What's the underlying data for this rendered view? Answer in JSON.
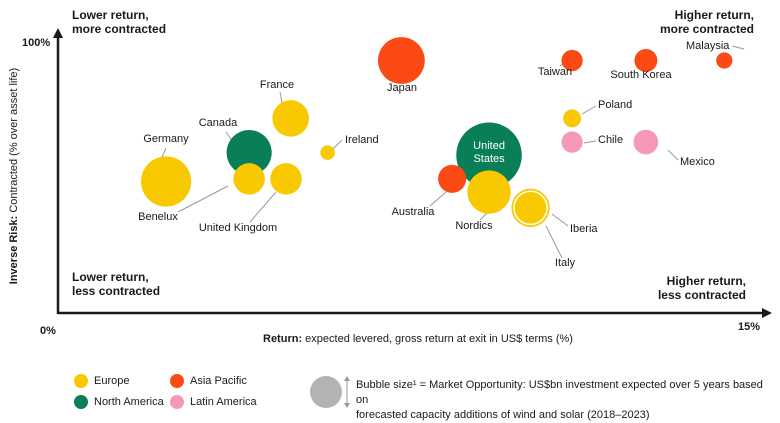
{
  "colors": {
    "europe": "#f8c800",
    "north_america": "#0a7f57",
    "asia_pacific": "#fb4a14",
    "latin_america": "#f49ab7",
    "axis": "#1a1a1a",
    "leader": "#9a9a9a",
    "size_bubble": "#b3b3b3"
  },
  "quadrants": {
    "top_left": [
      "Lower return,",
      "more contracted"
    ],
    "top_right": [
      "Higher return,",
      "more contracted"
    ],
    "bottom_left": [
      "Lower return,",
      "less contracted"
    ],
    "bottom_right": [
      "Higher return,",
      "less contracted"
    ]
  },
  "legend": [
    {
      "label": "Europe",
      "color_key": "europe"
    },
    {
      "label": "Asia Pacific",
      "color_key": "asia_pacific"
    },
    {
      "label": "North America",
      "color_key": "north_america"
    },
    {
      "label": "Latin America",
      "color_key": "latin_america"
    }
  ],
  "size_note": {
    "line1": "Bubble size¹ = Market Opportunity: US$bn investment expected over 5 years based on",
    "line2": "forecasted capacity additions of wind and solar (2018–2023)"
  },
  "chart_data": {
    "type": "scatter",
    "xlabel_bold": "Return:",
    "xlabel_rest": " expected levered, gross return at exit in US$ terms (%)",
    "ylabel_bold": "Inverse Risk:",
    "ylabel_rest": " Contracted (% over asset life)",
    "x_tick_min_label": "0%",
    "x_tick_max_label": "15%",
    "y_tick_max_label": "100%",
    "x_range": [
      0,
      15
    ],
    "y_range": [
      0,
      100
    ],
    "grid": false,
    "points": [
      {
        "label": "Germany",
        "region": "europe",
        "x": 2.3,
        "y": 50,
        "size": 26
      },
      {
        "label": "Benelux",
        "region": "europe",
        "x": 4.1,
        "y": 51,
        "size": 15
      },
      {
        "label": "Canada",
        "region": "north_america",
        "x": 4.1,
        "y": 61,
        "size": 23
      },
      {
        "label": "France",
        "region": "europe",
        "x": 5.0,
        "y": 74,
        "size": 18
      },
      {
        "label": "United Kingdom",
        "region": "europe",
        "x": 4.9,
        "y": 51,
        "size": 15
      },
      {
        "label": "Ireland",
        "region": "europe",
        "x": 5.8,
        "y": 61,
        "size": 5
      },
      {
        "label": "Japan",
        "region": "asia_pacific",
        "x": 7.4,
        "y": 96,
        "size": 24
      },
      {
        "label": "United States",
        "region": "north_america",
        "x": 9.3,
        "y": 60,
        "size": 35
      },
      {
        "label": "Australia",
        "region": "asia_pacific",
        "x": 8.5,
        "y": 51,
        "size": 13
      },
      {
        "label": "Nordics",
        "region": "europe",
        "x": 9.3,
        "y": 46,
        "size": 22
      },
      {
        "label": "Iberia",
        "region": "europe",
        "x": 10.2,
        "y": 40,
        "size": 19
      },
      {
        "label": "Italy",
        "region": "europe",
        "x": 10.2,
        "y": 40,
        "size": 16
      },
      {
        "label": "Poland",
        "region": "europe",
        "x": 11.1,
        "y": 74,
        "size": 7
      },
      {
        "label": "Chile",
        "region": "latin_america",
        "x": 11.1,
        "y": 65,
        "size": 9
      },
      {
        "label": "Taiwan",
        "region": "asia_pacific",
        "x": 11.1,
        "y": 96,
        "size": 9
      },
      {
        "label": "South Korea",
        "region": "asia_pacific",
        "x": 12.7,
        "y": 96,
        "size": 10
      },
      {
        "label": "Mexico",
        "region": "latin_america",
        "x": 12.7,
        "y": 65,
        "size": 11
      },
      {
        "label": "Malaysia",
        "region": "asia_pacific",
        "x": 14.4,
        "y": 96,
        "size": 6
      }
    ]
  }
}
